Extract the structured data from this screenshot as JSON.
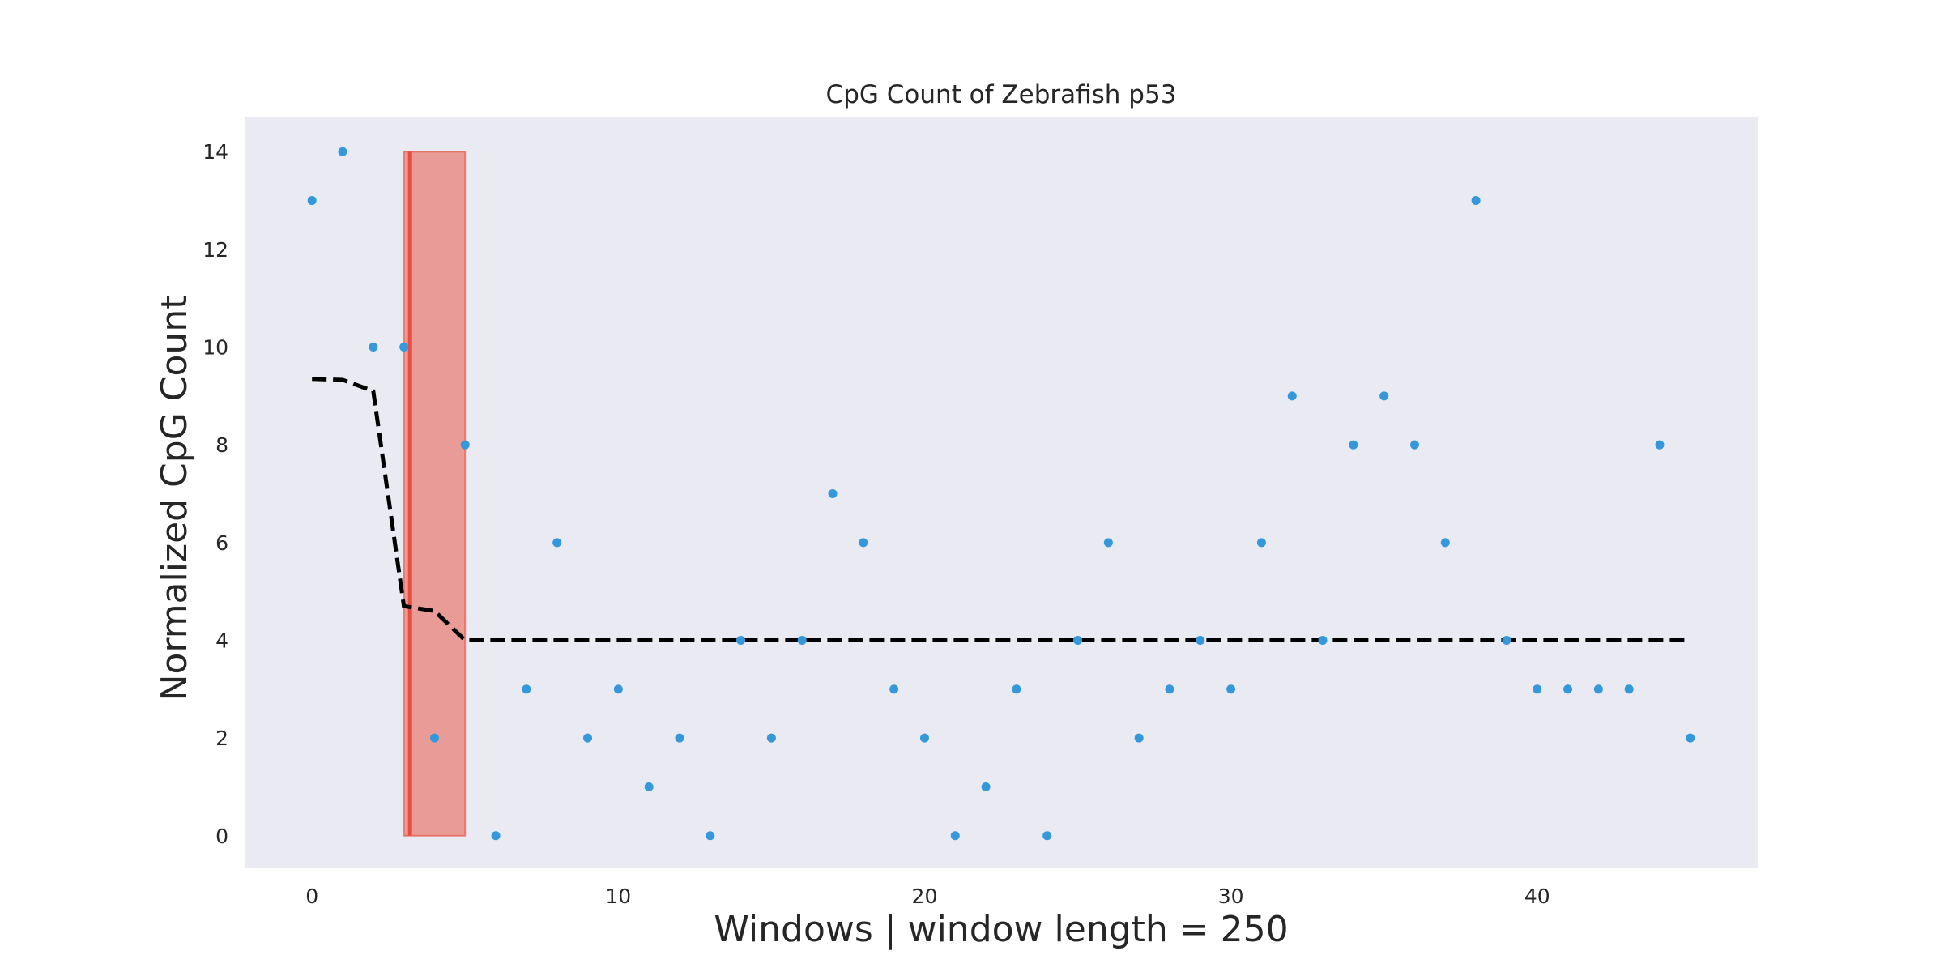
{
  "chart_data": {
    "type": "scatter",
    "title": "CpG Count of Zebrafish p53",
    "xlabel": "Windows | window length = 250",
    "ylabel": "Normalized CpG Count",
    "xlim": [
      -2.2,
      47.2
    ],
    "ylim": [
      -0.65,
      14.7
    ],
    "xticks": [
      0,
      10,
      20,
      30,
      40
    ],
    "yticks": [
      0,
      2,
      4,
      6,
      8,
      10,
      12,
      14
    ],
    "grid": false,
    "legend": "none",
    "colors": {
      "points": "#3498db",
      "trend": "#000000",
      "region_fill": "#e74c3c",
      "region_line": "#e74c3c",
      "plot_background": "#eaeaf2"
    },
    "series": [
      {
        "type": "scatter",
        "x": [
          0,
          1,
          2,
          3,
          4,
          5,
          6,
          7,
          8,
          9,
          10,
          11,
          12,
          13,
          14,
          15,
          16,
          17,
          18,
          19,
          20,
          21,
          22,
          23,
          24,
          25,
          26,
          27,
          28,
          29,
          30,
          31,
          32,
          33,
          34,
          35,
          36,
          37,
          38,
          39,
          40,
          41,
          42,
          43,
          44,
          45
        ],
        "y": [
          13,
          14,
          10,
          10,
          2,
          8,
          0,
          3,
          6,
          2,
          3,
          1,
          2,
          0,
          4,
          2,
          4,
          7,
          6,
          3,
          2,
          0,
          1,
          3,
          0,
          4,
          6,
          2,
          3,
          4,
          3,
          6,
          9,
          4,
          8,
          9,
          8,
          6,
          13,
          4,
          3,
          3,
          3,
          3,
          8,
          2
        ]
      },
      {
        "type": "line",
        "style": "dashed",
        "x": [
          0,
          1,
          2,
          3,
          4,
          5,
          6,
          45
        ],
        "y": [
          9.35,
          9.33,
          9.1,
          4.7,
          4.6,
          4.0,
          4.0,
          4.0
        ]
      }
    ],
    "highlight": {
      "x_start": 3,
      "x_end": 5,
      "y_start": 0,
      "y_end": 14,
      "vertical_line_x": 3.2
    }
  }
}
